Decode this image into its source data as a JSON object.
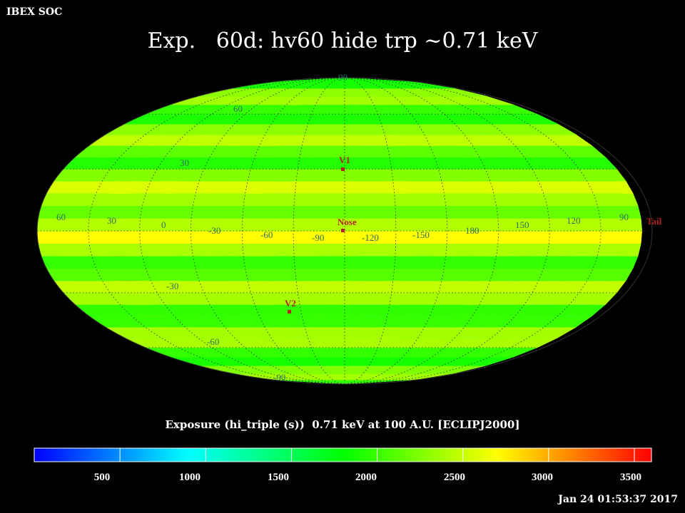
{
  "header": {
    "label": "IBEX SOC"
  },
  "map": {
    "title": "Exp.   60d: hv60 hide trp ~0.71 keV",
    "projection": "mollweide",
    "caption": "Exposure (hi_triple (s))  0.71 keV at 100 A.U. [ECLIPJ2000]",
    "longitude_labels": [
      "60",
      "30",
      "0",
      "-30",
      "-60",
      "-90",
      "-120",
      "-150",
      "180",
      "150",
      "120",
      "90"
    ],
    "latitude_labels": [
      "90",
      "60",
      "30",
      "-30",
      "-60",
      "-90"
    ],
    "markers": [
      {
        "name": "V1",
        "label": "V1",
        "lon": 255,
        "lat": 34
      },
      {
        "name": "Nose",
        "label": "Nose",
        "lon": 255,
        "lat": 5
      },
      {
        "name": "V2",
        "label": "V2",
        "lon": 290,
        "lat": -32
      },
      {
        "name": "Tail",
        "label": "Tail",
        "lon": 75,
        "lat": -5
      }
    ],
    "marker_color": "#b22222"
  },
  "colorbar": {
    "min": 0,
    "max": 3600,
    "tick_labels": [
      "500",
      "1000",
      "1500",
      "2000",
      "2500",
      "3000",
      "3500"
    ],
    "colors": [
      "#0000ff",
      "#00ffff",
      "#00ff00",
      "#ffff00",
      "#ff0000"
    ]
  },
  "footer": {
    "timestamp": "Jan 24 01:53:37 2017"
  }
}
